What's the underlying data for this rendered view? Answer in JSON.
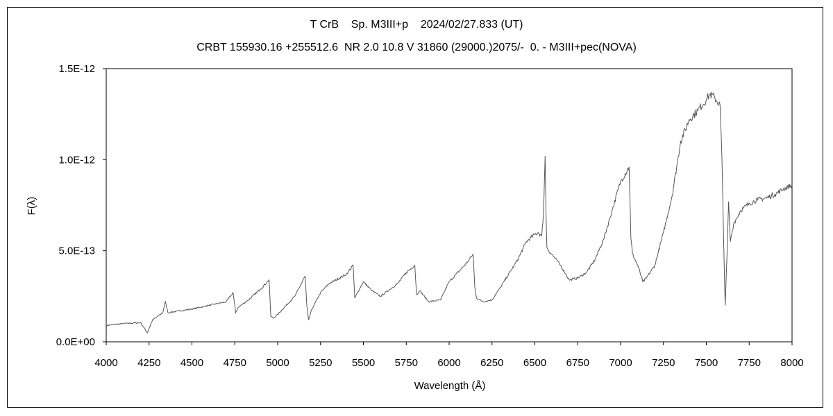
{
  "chart_data": {
    "type": "line",
    "title": "T CrB    Sp. M3III+p    2024/02/27.833 (UT)",
    "subtitle": "CRBT 155930.16 +255512.6  NR 2.0 10.8 V 31860 (29000.)2075/-  0. - M3III+pec(NOVA)",
    "xlabel": "Wavelength (Å)",
    "ylabel": "F(λ)",
    "xlim": [
      4000,
      8000
    ],
    "ylim": [
      0,
      1.5e-12
    ],
    "x_ticks": [
      4000,
      4250,
      4500,
      4750,
      5000,
      5250,
      5500,
      5750,
      6000,
      6250,
      6500,
      6750,
      7000,
      7250,
      7500,
      7750,
      8000
    ],
    "x_tick_labels": [
      "4000",
      "4250",
      "4500",
      "4750",
      "5000",
      "5250",
      "5500",
      "5750",
      "6000",
      "6250",
      "6500",
      "6750",
      "7000",
      "7250",
      "7500",
      "7750",
      "8000"
    ],
    "y_ticks": [
      0,
      5e-13,
      1e-12,
      1.5e-12
    ],
    "y_tick_labels": [
      "0.0E+00",
      "5.0E-13",
      "1.0E-12",
      "1.5E-12"
    ],
    "grid": false,
    "line_color": "#555555",
    "series": [
      {
        "x": [
          4000,
          4100,
          4200,
          4240,
          4270,
          4300,
          4330,
          4345,
          4360,
          4500,
          4600,
          4650,
          4700,
          4740,
          4755,
          4770,
          4830,
          4900,
          4950,
          4960,
          4975,
          5000,
          5100,
          5160,
          5170,
          5180,
          5200,
          5250,
          5300,
          5400,
          5440,
          5450,
          5460,
          5500,
          5550,
          5600,
          5700,
          5750,
          5800,
          5810,
          5830,
          5880,
          5950,
          6000,
          6100,
          6140,
          6150,
          6160,
          6200,
          6250,
          6300,
          6400,
          6450,
          6500,
          6520,
          6540,
          6550,
          6560,
          6565,
          6570,
          6580,
          6600,
          6650,
          6700,
          6750,
          6800,
          6850,
          6900,
          6950,
          7000,
          7050,
          7060,
          7070,
          7100,
          7130,
          7150,
          7200,
          7250,
          7300,
          7350,
          7400,
          7450,
          7500,
          7520,
          7550,
          7580,
          7590,
          7600,
          7610,
          7620,
          7630,
          7640,
          7660,
          7700,
          7750,
          7800,
          7850,
          7900,
          7950,
          8000
        ],
        "y": [
          9e-14,
          1e-13,
          1.05e-13,
          5e-14,
          1.2e-13,
          1.4e-13,
          1.6e-13,
          2.2e-13,
          1.6e-13,
          1.8e-13,
          2e-13,
          2.1e-13,
          2.2e-13,
          2.7e-13,
          1.6e-13,
          1.9e-13,
          2.3e-13,
          2.9e-13,
          3.4e-13,
          1.4e-13,
          1.3e-13,
          1.5e-13,
          2.5e-13,
          3.6e-13,
          2e-13,
          1.2e-13,
          1.8e-13,
          2.7e-13,
          3.2e-13,
          3.7e-13,
          4.2e-13,
          2.4e-13,
          2.6e-13,
          3.3e-13,
          2.8e-13,
          2.5e-13,
          3.2e-13,
          3.8e-13,
          4.2e-13,
          2.6e-13,
          2.8e-13,
          2.2e-13,
          2.3e-13,
          3.3e-13,
          4.3e-13,
          4.8e-13,
          3e-13,
          2.4e-13,
          2.2e-13,
          2.3e-13,
          3e-13,
          4.5e-13,
          5.5e-13,
          5.9e-13,
          6e-13,
          5.8e-13,
          7e-13,
          1.02e-12,
          7e-13,
          5.2e-13,
          5e-13,
          4.8e-13,
          4.2e-13,
          3.4e-13,
          3.5e-13,
          3.8e-13,
          4.5e-13,
          5.6e-13,
          7.2e-13,
          8.8e-13,
          9.6e-13,
          5.7e-13,
          4.8e-13,
          4.2e-13,
          3.3e-13,
          3.5e-13,
          4.2e-13,
          6e-13,
          8e-13,
          1.1e-12,
          1.22e-12,
          1.27e-12,
          1.33e-12,
          1.36e-12,
          1.34e-12,
          1.3e-12,
          1.05e-12,
          6e-13,
          2e-13,
          4.5e-13,
          7.7e-13,
          5.5e-13,
          6.5e-13,
          7.2e-13,
          7.6e-13,
          7.8e-13,
          7.9e-13,
          8.1e-13,
          8.4e-13,
          8.6e-13
        ]
      }
    ]
  }
}
